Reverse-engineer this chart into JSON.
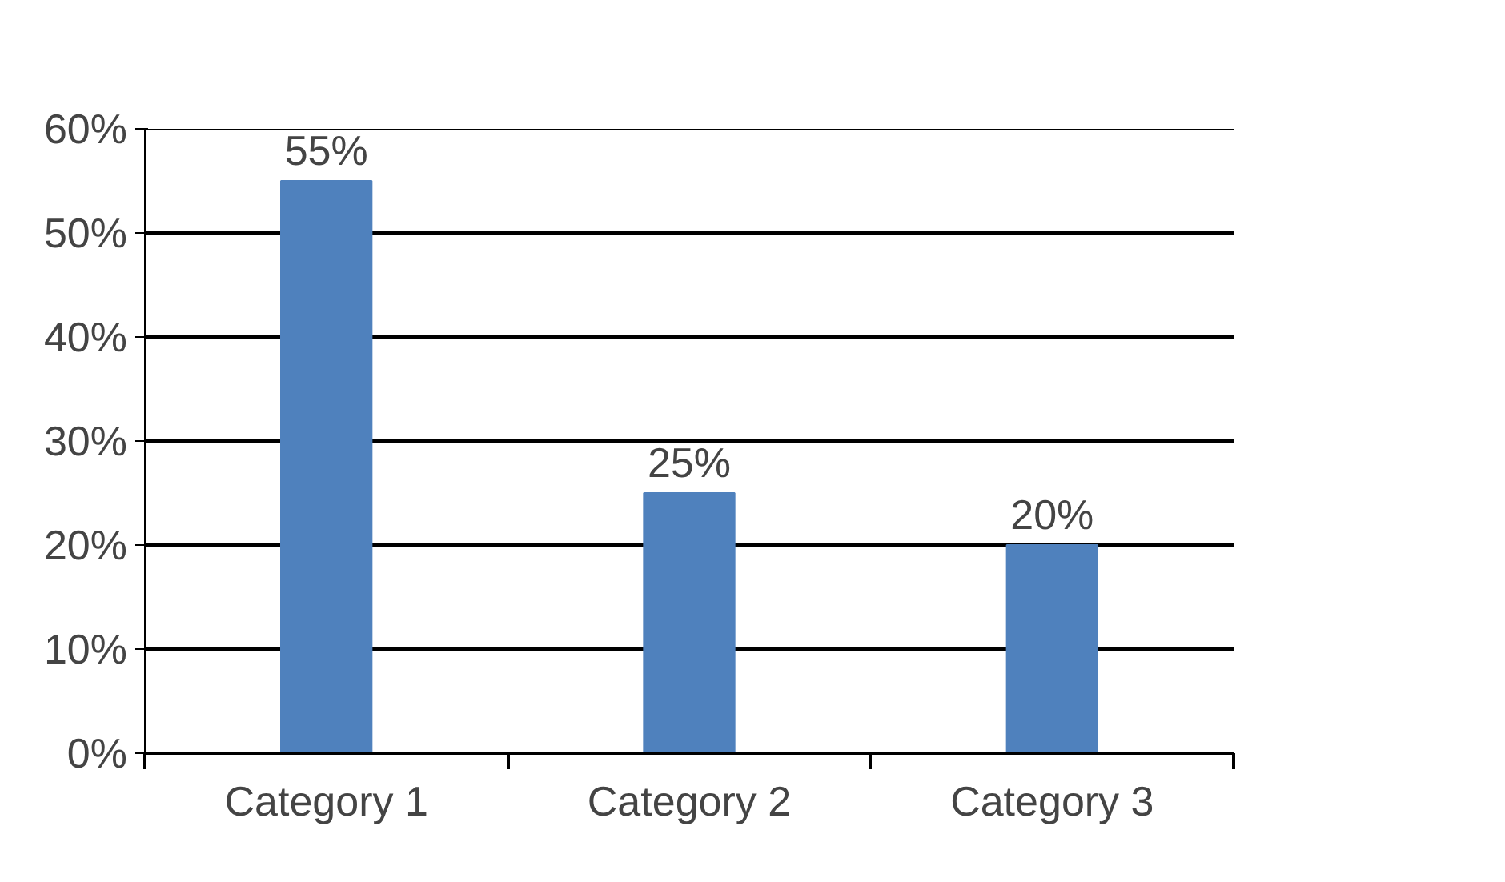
{
  "chart_data": {
    "type": "bar",
    "categories": [
      "Category 1",
      "Category 2",
      "Category 3"
    ],
    "values": [
      55,
      25,
      20
    ],
    "color": "#4f81bd",
    "value_labels": [
      "55%",
      "25%",
      "20%"
    ],
    "ylim": [
      0,
      60
    ],
    "yticks": [
      {
        "value": 0,
        "label": "0%"
      },
      {
        "value": 10,
        "label": "10%"
      },
      {
        "value": 20,
        "label": "20%"
      },
      {
        "value": 30,
        "label": "30%"
      },
      {
        "value": 40,
        "label": "40%"
      },
      {
        "value": 50,
        "label": "50%"
      },
      {
        "value": 60,
        "label": "60%"
      }
    ],
    "grid": "y"
  }
}
